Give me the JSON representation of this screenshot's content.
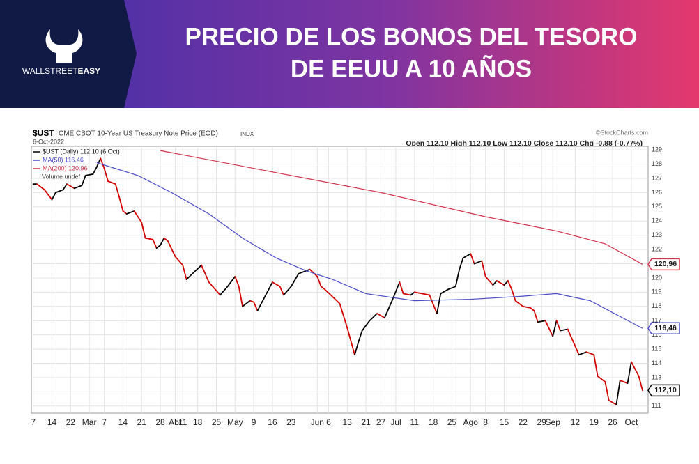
{
  "header": {
    "brand_light": "WALLSTREET",
    "brand_bold": "EASY",
    "title_lines": [
      "PRECIO DE LOS BONOS DEL TESORO",
      "DE EEUU A 10 AÑOS"
    ]
  },
  "chart_data": {
    "type": "line",
    "symbol": "$UST",
    "description": "CME CBOT 10-Year US Treasury Note Price (EOD)",
    "exchange": "INDX",
    "date": "6-Oct-2022",
    "source": "©StockCharts.com",
    "quote": "Open 112.10 High 112.10 Low 112.10 Close 112.10 Chg -0.88 (-0.77%)",
    "volume_note": "Volume undef",
    "xlim": [
      -0.5,
      164.5
    ],
    "ylim": [
      110.5,
      129.25
    ],
    "yticks": [
      111,
      112,
      113,
      114,
      115,
      116,
      117,
      118,
      119,
      120,
      121,
      122,
      123,
      124,
      125,
      126,
      127,
      128,
      129
    ],
    "xticks": [
      {
        "value": 0,
        "label": "7"
      },
      {
        "value": 5,
        "label": "14"
      },
      {
        "value": 10,
        "label": "22"
      },
      {
        "value": 15,
        "label": "Mar"
      },
      {
        "value": 19,
        "label": "7"
      },
      {
        "value": 24,
        "label": "14"
      },
      {
        "value": 29,
        "label": "21"
      },
      {
        "value": 34,
        "label": "28"
      },
      {
        "value": 38,
        "label": "Abr"
      },
      {
        "value": 40,
        "label": "11"
      },
      {
        "value": 44,
        "label": "18"
      },
      {
        "value": 49,
        "label": "25"
      },
      {
        "value": 54,
        "label": "May"
      },
      {
        "value": 59,
        "label": "9"
      },
      {
        "value": 64,
        "label": "16"
      },
      {
        "value": 69,
        "label": "23"
      },
      {
        "value": 76,
        "label": "Jun"
      },
      {
        "value": 79,
        "label": "6"
      },
      {
        "value": 84,
        "label": "13"
      },
      {
        "value": 89,
        "label": "21"
      },
      {
        "value": 93,
        "label": "27"
      },
      {
        "value": 97,
        "label": "Jul"
      },
      {
        "value": 102,
        "label": "11"
      },
      {
        "value": 107,
        "label": "18"
      },
      {
        "value": 112,
        "label": "25"
      },
      {
        "value": 117,
        "label": "Ago"
      },
      {
        "value": 121,
        "label": "8"
      },
      {
        "value": 126,
        "label": "15"
      },
      {
        "value": 131,
        "label": "22"
      },
      {
        "value": 136,
        "label": "29"
      },
      {
        "value": 139,
        "label": "Sep"
      },
      {
        "value": 145,
        "label": "12"
      },
      {
        "value": 150,
        "label": "19"
      },
      {
        "value": 155,
        "label": "26"
      },
      {
        "value": 160,
        "label": "Oct"
      }
    ],
    "grid": true,
    "series": [
      {
        "name": "$UST (Daily) 112.10 (6 Oct)",
        "color": "#000000",
        "down_color": "#d40000",
        "last_label": "112,10",
        "x": [
          0,
          1,
          3,
          5,
          6,
          8,
          9,
          11,
          13,
          14,
          16,
          17,
          18,
          19,
          20,
          22,
          23,
          24,
          25,
          27,
          29,
          30,
          32,
          33,
          34,
          35,
          36,
          38,
          40,
          41,
          43,
          45,
          47,
          48,
          50,
          52,
          54,
          55,
          56,
          58,
          59,
          60,
          62,
          64,
          66,
          67,
          69,
          71,
          73,
          74,
          76,
          77,
          78,
          80,
          82,
          84,
          86,
          87,
          88,
          90,
          92,
          94,
          96,
          98,
          99,
          101,
          102,
          104,
          106,
          108,
          109,
          111,
          113,
          114,
          115,
          117,
          118,
          120,
          121,
          123,
          124,
          126,
          127,
          128,
          129,
          131,
          133,
          134,
          135,
          137,
          139,
          140,
          141,
          143,
          144,
          146,
          148,
          150,
          151,
          153,
          154,
          156,
          157,
          159,
          160,
          162,
          163
        ],
        "values": [
          126.6,
          126.6,
          126.2,
          125.5,
          126.0,
          126.2,
          126.6,
          126.3,
          126.5,
          127.2,
          127.3,
          127.8,
          128.4,
          127.7,
          126.8,
          126.6,
          125.7,
          124.7,
          124.5,
          124.7,
          123.9,
          122.8,
          122.7,
          122.1,
          122.3,
          122.8,
          122.6,
          121.5,
          120.9,
          119.9,
          120.4,
          120.9,
          119.7,
          119.4,
          118.8,
          119.4,
          120.1,
          119.4,
          118.0,
          118.4,
          118.3,
          117.7,
          118.7,
          119.7,
          119.4,
          118.8,
          119.4,
          120.3,
          120.5,
          120.6,
          120.1,
          119.4,
          119.2,
          118.7,
          118.2,
          116.5,
          114.6,
          115.5,
          116.3,
          117.0,
          117.5,
          117.2,
          118.4,
          119.7,
          118.9,
          118.8,
          119.0,
          118.9,
          118.8,
          117.5,
          118.9,
          119.2,
          119.4,
          120.6,
          121.4,
          121.7,
          121.0,
          121.2,
          120.1,
          119.5,
          119.8,
          119.5,
          119.8,
          119.2,
          118.4,
          118.0,
          117.9,
          117.7,
          116.9,
          117.0,
          115.9,
          117.0,
          116.3,
          116.4,
          115.8,
          114.6,
          114.8,
          114.6,
          113.1,
          112.7,
          111.4,
          111.1,
          112.8,
          112.6,
          114.1,
          113.1,
          112.1
        ]
      },
      {
        "name": "MA(50) 116.46",
        "color": "#4a4ac8",
        "last_label": "116,46",
        "x": [
          17,
          28,
          37,
          47,
          56,
          65,
          73,
          80,
          89,
          102,
          117,
          130,
          140,
          149,
          163
        ],
        "values": [
          128.1,
          127.2,
          126.0,
          124.5,
          122.8,
          121.4,
          120.5,
          119.9,
          118.9,
          118.4,
          118.5,
          118.7,
          118.9,
          118.4,
          116.46
        ]
      },
      {
        "name": "MA(200) 120.96",
        "color": "#d4304a",
        "last_label": "120,96",
        "x": [
          34,
          65,
          93,
          121,
          140,
          153,
          163
        ],
        "values": [
          128.95,
          127.4,
          126.0,
          124.3,
          123.3,
          122.4,
          120.96
        ]
      }
    ]
  }
}
